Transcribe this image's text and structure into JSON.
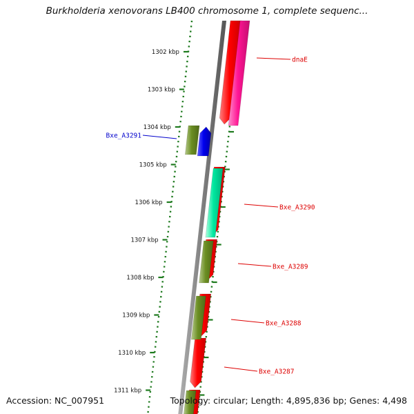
{
  "title": "Burkholderia xenovorans LB400 chromosome 1, complete sequenc...",
  "footer": {
    "accession": "Accession: NC_007951",
    "topology": "Topology: circular; Length: 4,895,836 bp; Genes: 4,498"
  },
  "ruler": {
    "unit": "kbp",
    "ticks": [
      {
        "label": "1302 kbp"
      },
      {
        "label": "1303 kbp"
      },
      {
        "label": "1304 kbp"
      },
      {
        "label": "1305 kbp"
      },
      {
        "label": "1306 kbp"
      },
      {
        "label": "1307 kbp"
      },
      {
        "label": "1308 kbp"
      },
      {
        "label": "1309 kbp"
      },
      {
        "label": "1310 kbp"
      },
      {
        "label": "1311 kbp"
      }
    ]
  },
  "genes": [
    {
      "name": "dnaE",
      "strand": "forward",
      "color": "#ff1493"
    },
    {
      "name": "Bxe_A3291",
      "strand": "reverse",
      "color": "#0000ee"
    },
    {
      "name": "Bxe_A3290",
      "strand": "forward",
      "color": "#00e8a0"
    },
    {
      "name": "Bxe_A3289",
      "strand": "forward",
      "color": "#6b8e23"
    },
    {
      "name": "Bxe_A3288",
      "strand": "forward",
      "color": "#6b8e23"
    },
    {
      "name": "Bxe_A3287",
      "strand": "forward",
      "color": "#6b8e23"
    }
  ],
  "colors": {
    "cds": "#ff0000",
    "gene_olive": "#6b8e23",
    "ruler": "#1e7a1e",
    "backbone": "#808080",
    "label_forward": "#dd0000",
    "label_reverse": "#0000cc"
  }
}
